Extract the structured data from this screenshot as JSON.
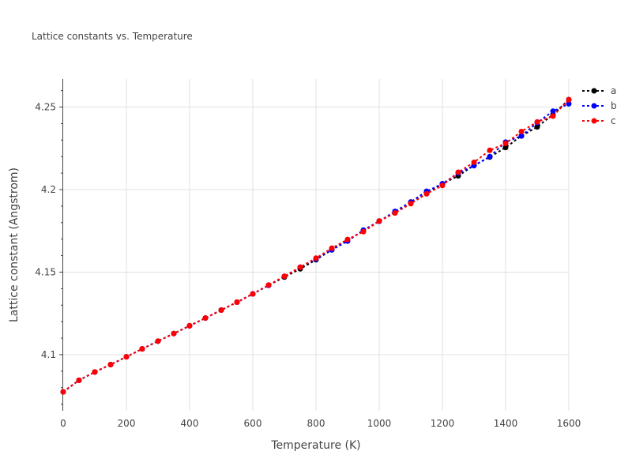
{
  "chart_data": {
    "type": "line",
    "title": "Lattice constants vs. Temperature",
    "xlabel": "Temperature (K)",
    "ylabel": "Lattice constant (Angstrom)",
    "xlim": [
      0,
      1600
    ],
    "ylim": [
      4.066,
      4.267
    ],
    "x_ticks": [
      0,
      200,
      400,
      600,
      800,
      1000,
      1200,
      1400,
      1600
    ],
    "y_ticks": [
      4.1,
      4.15,
      4.2,
      4.25
    ],
    "x_tick_labels": [
      "0",
      "200",
      "400",
      "600",
      "800",
      "1000",
      "1200",
      "1400",
      "1600"
    ],
    "y_tick_labels": [
      "4.1",
      "4.15",
      "4.2",
      "4.25"
    ],
    "grid": true,
    "legend_position": "top-right",
    "x": [
      0,
      50,
      100,
      150,
      200,
      250,
      300,
      350,
      400,
      450,
      500,
      550,
      600,
      650,
      700,
      750,
      800,
      850,
      900,
      950,
      1000,
      1050,
      1100,
      1150,
      1200,
      1250,
      1300,
      1350,
      1400,
      1450,
      1500,
      1550,
      1600
    ],
    "series": [
      {
        "name": "a",
        "color": "#000000",
        "values": [
          4.0775,
          4.0845,
          4.0895,
          4.094,
          4.0987,
          4.1035,
          4.1082,
          4.1128,
          4.1175,
          4.1222,
          4.127,
          4.1318,
          4.1368,
          4.142,
          4.147,
          4.152,
          4.1575,
          4.1635,
          4.1695,
          4.175,
          4.181,
          4.186,
          4.192,
          4.1975,
          4.2035,
          4.2083,
          4.2147,
          4.2197,
          4.2255,
          4.2325,
          4.238,
          4.2455,
          4.2545
        ]
      },
      {
        "name": "b",
        "color": "#0000ff",
        "values": [
          4.0775,
          4.0845,
          4.0895,
          4.094,
          4.0987,
          4.1035,
          4.1082,
          4.1128,
          4.1175,
          4.1222,
          4.127,
          4.1318,
          4.1368,
          4.142,
          4.1475,
          4.153,
          4.158,
          4.1635,
          4.1688,
          4.1755,
          4.1808,
          4.1868,
          4.1925,
          4.199,
          4.2035,
          4.21,
          4.2145,
          4.22,
          4.2288,
          4.2325,
          4.2405,
          4.2475,
          4.252
        ]
      },
      {
        "name": "c",
        "color": "#ff0000",
        "values": [
          4.0775,
          4.0845,
          4.0895,
          4.094,
          4.0987,
          4.1035,
          4.1082,
          4.1128,
          4.1175,
          4.1222,
          4.127,
          4.1318,
          4.1368,
          4.1422,
          4.1475,
          4.153,
          4.1585,
          4.1645,
          4.1698,
          4.1745,
          4.181,
          4.1858,
          4.1915,
          4.1975,
          4.2025,
          4.2105,
          4.2165,
          4.2238,
          4.228,
          4.2352,
          4.241,
          4.2445,
          4.2545
        ]
      }
    ]
  }
}
